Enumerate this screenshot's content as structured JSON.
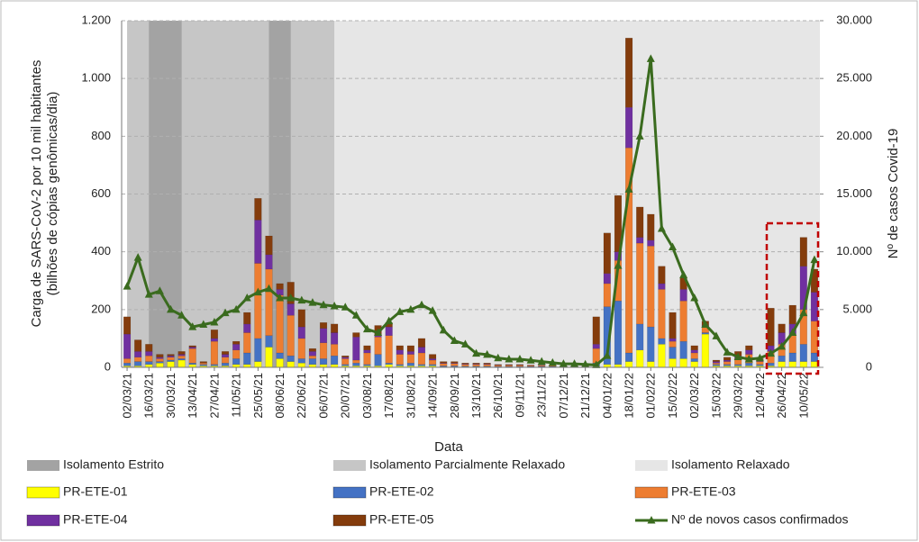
{
  "chart_data": {
    "type": "bar",
    "stacked": true,
    "x_label": "Data",
    "y_label": "Carga de SARS-CoV-2 por 10 mil habitantes\n(bilhões de cópias genômicas/dia)",
    "y2_label": "Nº de casos Covid-19",
    "categories": [
      "02/03/21",
      null,
      "16/03/21",
      null,
      "30/03/21",
      null,
      "13/04/21",
      null,
      "27/04/21",
      null,
      "11/05/21",
      null,
      "25/05/21",
      null,
      "08/06/21",
      null,
      "22/06/21",
      null,
      "06/07/21",
      null,
      "20/07/21",
      null,
      "03/08/21",
      null,
      "17/08/21",
      null,
      "31/08/21",
      null,
      "14/09/21",
      null,
      "28/09/21",
      null,
      "13/10/21",
      null,
      "26/10/21",
      null,
      "09/11/21",
      null,
      "23/11/21",
      null,
      "07/12/21",
      null,
      "21/12/21",
      null,
      "04/01/22",
      null,
      "18/01/22",
      null,
      "01/02/22",
      null,
      "15/02/22",
      null,
      "02/03/22",
      null,
      "15/03/22",
      null,
      "29/03/22",
      null,
      "12/04/22",
      null,
      "26/04/22",
      null,
      "10/05/22",
      null
    ],
    "regions": [
      {
        "name": "Isolamento Estrito",
        "color": "#a3a3a3",
        "spans": [
          [
            2,
            5
          ],
          [
            13,
            15
          ]
        ]
      },
      {
        "name": "Isolamento Parcialmente Relaxado",
        "color": "#c6c6c6",
        "spans": [
          [
            0,
            19
          ]
        ]
      },
      {
        "name": "Isolamento Relaxado",
        "color": "#e6e6e6",
        "spans": [
          [
            19,
            64
          ]
        ]
      }
    ],
    "series": [
      {
        "name": "PR-ETE-01",
        "color": "#ffff00",
        "values": [
          5,
          5,
          10,
          15,
          20,
          25,
          10,
          5,
          5,
          5,
          10,
          10,
          20,
          70,
          30,
          20,
          15,
          10,
          10,
          10,
          5,
          5,
          5,
          5,
          10,
          5,
          5,
          5,
          5,
          2,
          2,
          2,
          2,
          2,
          1,
          1,
          1,
          1,
          1,
          1,
          1,
          1,
          1,
          5,
          10,
          10,
          20,
          60,
          20,
          80,
          30,
          30,
          20,
          115,
          5,
          5,
          5,
          5,
          5,
          5,
          20,
          20,
          20,
          20
        ]
      },
      {
        "name": "PR-ETE-02",
        "color": "#4472c4",
        "values": [
          10,
          15,
          10,
          5,
          5,
          5,
          5,
          5,
          5,
          10,
          20,
          40,
          80,
          40,
          20,
          20,
          15,
          20,
          20,
          30,
          5,
          10,
          5,
          40,
          5,
          5,
          10,
          5,
          5,
          3,
          3,
          2,
          2,
          2,
          2,
          2,
          2,
          2,
          2,
          2,
          1,
          1,
          1,
          10,
          200,
          220,
          30,
          90,
          120,
          20,
          40,
          60,
          10,
          5,
          5,
          5,
          5,
          10,
          5,
          10,
          20,
          30,
          60,
          30
        ]
      },
      {
        "name": "PR-ETE-03",
        "color": "#ed7d31",
        "values": [
          15,
          15,
          20,
          10,
          10,
          10,
          50,
          5,
          80,
          20,
          30,
          70,
          260,
          230,
          200,
          140,
          70,
          10,
          55,
          40,
          20,
          10,
          40,
          60,
          95,
          35,
          30,
          40,
          15,
          8,
          8,
          6,
          6,
          6,
          4,
          4,
          4,
          3,
          3,
          3,
          2,
          2,
          2,
          50,
          80,
          140,
          710,
          280,
          280,
          170,
          20,
          140,
          20,
          20,
          5,
          10,
          20,
          30,
          10,
          40,
          40,
          60,
          120,
          110
        ]
      },
      {
        "name": "PR-ETE-04",
        "color": "#7030a0",
        "values": [
          85,
          20,
          15,
          5,
          5,
          5,
          5,
          0,
          10,
          10,
          20,
          30,
          150,
          50,
          20,
          40,
          40,
          15,
          50,
          40,
          5,
          80,
          10,
          10,
          30,
          15,
          10,
          20,
          5,
          2,
          2,
          2,
          2,
          2,
          1,
          1,
          1,
          1,
          1,
          1,
          0,
          0,
          0,
          15,
          35,
          30,
          140,
          20,
          20,
          20,
          10,
          40,
          10,
          5,
          5,
          5,
          10,
          15,
          5,
          20,
          40,
          40,
          150,
          100
        ]
      },
      {
        "name": "PR-ETE-05",
        "color": "#843c0c",
        "values": [
          60,
          40,
          25,
          10,
          5,
          10,
          5,
          5,
          30,
          10,
          10,
          40,
          75,
          65,
          20,
          75,
          60,
          10,
          20,
          30,
          5,
          15,
          15,
          30,
          15,
          15,
          20,
          30,
          15,
          5,
          5,
          3,
          3,
          3,
          2,
          2,
          2,
          1,
          1,
          1,
          1,
          1,
          1,
          95,
          140,
          195,
          240,
          105,
          90,
          60,
          90,
          40,
          15,
          15,
          5,
          10,
          15,
          15,
          5,
          130,
          30,
          65,
          100,
          80
        ]
      },
      {
        "name": "Nº de novos casos confirmados",
        "type": "line",
        "axis": "y2",
        "color": "#3a6b1e",
        "values": [
          7000,
          9500,
          6300,
          6600,
          5000,
          4500,
          3500,
          3700,
          3900,
          4700,
          5000,
          6000,
          6500,
          6800,
          6000,
          6000,
          5800,
          5600,
          5400,
          5300,
          5200,
          4500,
          3300,
          3000,
          4000,
          4800,
          5000,
          5400,
          4900,
          3200,
          2300,
          2000,
          1200,
          1100,
          800,
          700,
          700,
          600,
          500,
          400,
          300,
          300,
          250,
          200,
          1000,
          8800,
          15400,
          20000,
          26700,
          12000,
          10400,
          8000,
          6000,
          3700,
          2700,
          1300,
          900,
          700,
          800,
          1200,
          1800,
          3000,
          4700,
          9300
        ]
      }
    ],
    "ylim": [
      0,
      1200
    ],
    "yticks": [
      0,
      200,
      400,
      600,
      800,
      {
        "value": 1000,
        "label": "1.000"
      },
      {
        "value": 1200,
        "label": "1.200"
      }
    ],
    "y2lim": [
      0,
      30000
    ],
    "y2ticks": [
      0,
      {
        "value": 5000,
        "label": "5.000"
      },
      {
        "value": 10000,
        "label": "10.000"
      },
      {
        "value": 15000,
        "label": "15.000"
      },
      {
        "value": 20000,
        "label": "20.000"
      },
      {
        "value": 25000,
        "label": "25.000"
      },
      {
        "value": 30000,
        "label": "30.000"
      }
    ],
    "grid": true
  }
}
